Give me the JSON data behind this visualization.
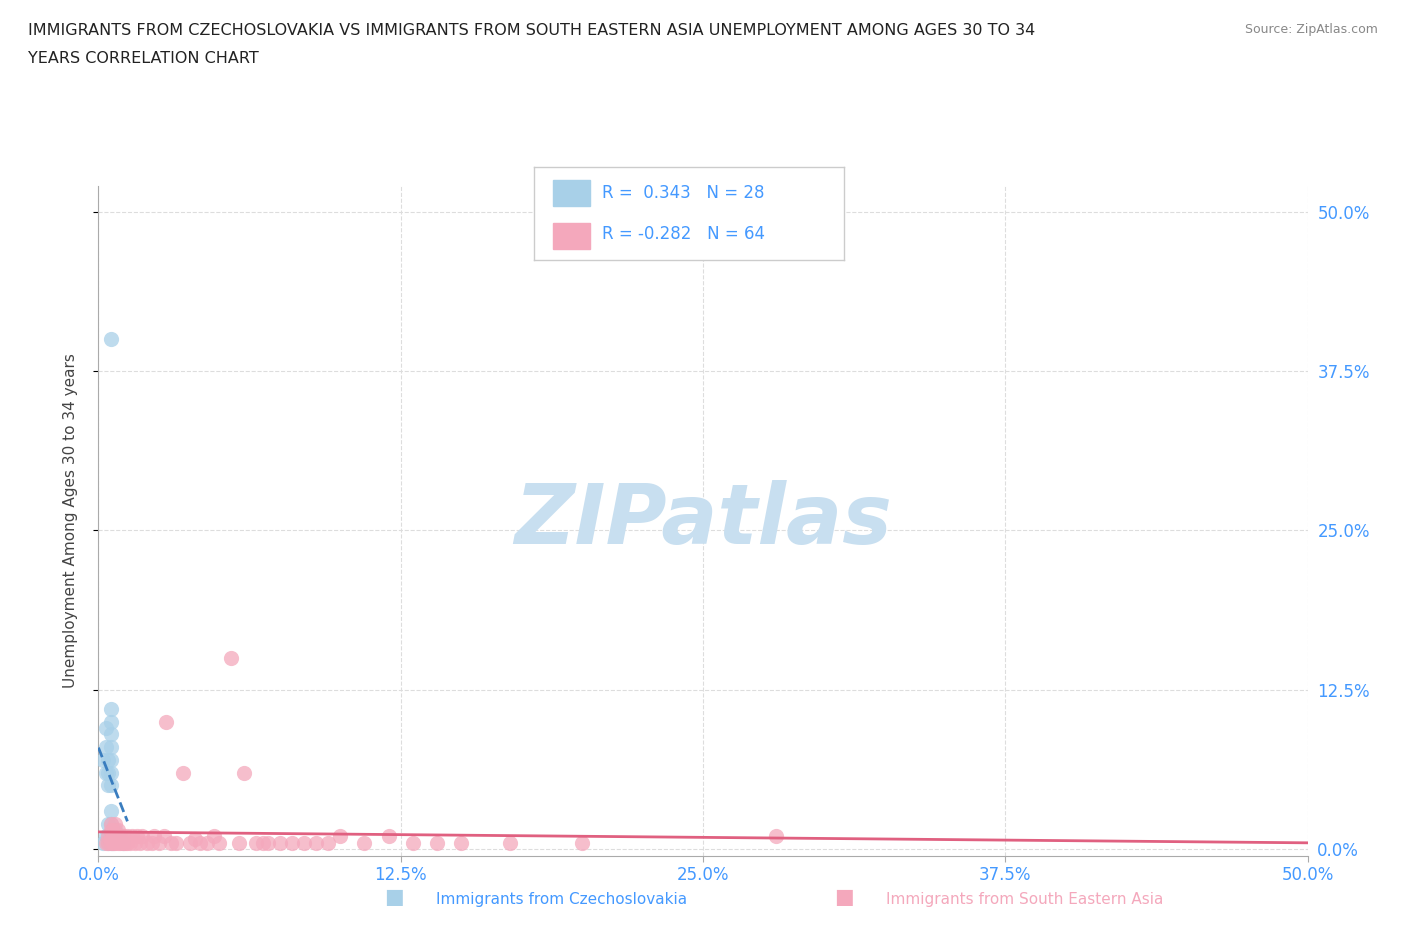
{
  "title_line1": "IMMIGRANTS FROM CZECHOSLOVAKIA VS IMMIGRANTS FROM SOUTH EASTERN ASIA UNEMPLOYMENT AMONG AGES 30 TO 34",
  "title_line2": "YEARS CORRELATION CHART",
  "source": "Source: ZipAtlas.com",
  "ylabel_label": "Unemployment Among Ages 30 to 34 years",
  "xticklabels": [
    "0.0%",
    "12.5%",
    "25.0%",
    "37.5%",
    "50.0%"
  ],
  "yticklabels_right": [
    "0.0%",
    "12.5%",
    "25.0%",
    "37.5%",
    "50.0%"
  ],
  "xlim": [
    0.0,
    0.5
  ],
  "ylim": [
    -0.01,
    0.52
  ],
  "legend1_label": "Immigrants from Czechoslovakia",
  "legend2_label": "Immigrants from South Eastern Asia",
  "R1": "0.343",
  "N1": "28",
  "R2": "-0.282",
  "N2": "64",
  "color1": "#a8d0e8",
  "color2": "#f4a8bc",
  "trendline1_color": "#3a7dbf",
  "trendline1_style": "dashed",
  "trendline2_color": "#e06080",
  "watermark_text": "ZIPatlas",
  "watermark_color": "#c8dff0",
  "background_color": "#ffffff",
  "grid_color": "#dddddd",
  "tick_color": "#4499ff",
  "ylabel_color": "#444444",
  "czecho_x": [
    0.002,
    0.002,
    0.003,
    0.003,
    0.003,
    0.003,
    0.004,
    0.004,
    0.004,
    0.004,
    0.004,
    0.004,
    0.005,
    0.005,
    0.005,
    0.005,
    0.005,
    0.005,
    0.005,
    0.005,
    0.005,
    0.005,
    0.006,
    0.006,
    0.007,
    0.008,
    0.01,
    0.005
  ],
  "czecho_y": [
    0.005,
    0.07,
    0.06,
    0.08,
    0.095,
    0.01,
    0.02,
    0.05,
    0.06,
    0.07,
    0.005,
    0.01,
    0.005,
    0.02,
    0.03,
    0.05,
    0.06,
    0.07,
    0.08,
    0.09,
    0.1,
    0.11,
    0.005,
    0.01,
    0.015,
    0.01,
    0.005,
    0.4
  ],
  "sea_x": [
    0.003,
    0.004,
    0.004,
    0.005,
    0.005,
    0.005,
    0.005,
    0.006,
    0.006,
    0.006,
    0.007,
    0.007,
    0.007,
    0.008,
    0.008,
    0.008,
    0.009,
    0.009,
    0.01,
    0.01,
    0.011,
    0.012,
    0.012,
    0.013,
    0.014,
    0.015,
    0.016,
    0.017,
    0.018,
    0.02,
    0.022,
    0.023,
    0.025,
    0.027,
    0.028,
    0.03,
    0.032,
    0.035,
    0.038,
    0.04,
    0.042,
    0.045,
    0.048,
    0.05,
    0.055,
    0.058,
    0.06,
    0.065,
    0.068,
    0.07,
    0.075,
    0.08,
    0.085,
    0.09,
    0.095,
    0.1,
    0.11,
    0.12,
    0.13,
    0.14,
    0.15,
    0.17,
    0.2,
    0.28
  ],
  "sea_y": [
    0.005,
    0.005,
    0.01,
    0.005,
    0.01,
    0.015,
    0.02,
    0.005,
    0.01,
    0.015,
    0.005,
    0.01,
    0.02,
    0.005,
    0.01,
    0.015,
    0.005,
    0.01,
    0.005,
    0.01,
    0.005,
    0.005,
    0.01,
    0.005,
    0.01,
    0.005,
    0.01,
    0.005,
    0.01,
    0.005,
    0.005,
    0.01,
    0.005,
    0.01,
    0.1,
    0.005,
    0.005,
    0.06,
    0.005,
    0.008,
    0.005,
    0.005,
    0.01,
    0.005,
    0.15,
    0.005,
    0.06,
    0.005,
    0.005,
    0.005,
    0.005,
    0.005,
    0.005,
    0.005,
    0.005,
    0.01,
    0.005,
    0.01,
    0.005,
    0.005,
    0.005,
    0.005,
    0.005,
    0.01
  ]
}
